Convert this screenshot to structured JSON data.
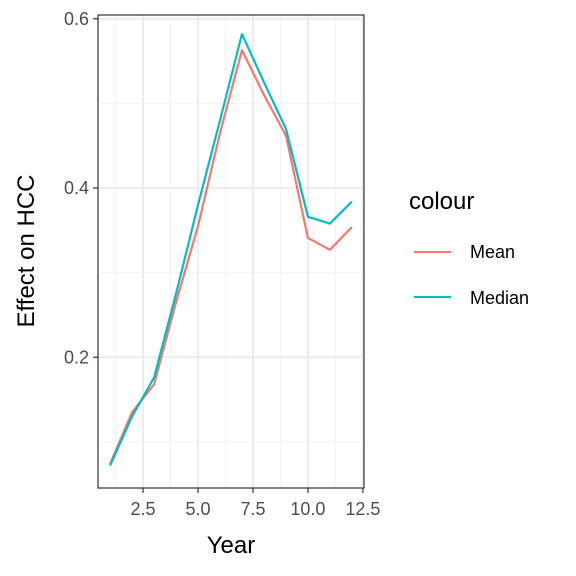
{
  "chart_data": {
    "type": "line",
    "title": "",
    "xlabel": "Year",
    "ylabel": "Effect on HCC",
    "xlim": [
      0.45,
      12.55
    ],
    "ylim": [
      0.0455,
      0.6045
    ],
    "x_major_ticks": [
      2.5,
      5.0,
      7.5,
      10.0,
      12.5
    ],
    "x_tick_labels": [
      "2.5",
      "5.0",
      "7.5",
      "10.0",
      "12.5"
    ],
    "x_minor_ticks": [
      1.25,
      3.75,
      6.25,
      8.75,
      11.25
    ],
    "y_major_ticks": [
      0.2,
      0.4,
      0.6
    ],
    "y_tick_labels": [
      "0.2",
      "0.4",
      "0.6"
    ],
    "y_minor_ticks": [
      0.1,
      0.3,
      0.5
    ],
    "grid": true,
    "legend": {
      "title": "colour",
      "position": "right"
    },
    "x": [
      1,
      2,
      3,
      4,
      5,
      6,
      7,
      8,
      9,
      10,
      11,
      12
    ],
    "series": [
      {
        "name": "Mean",
        "color": "#F8766D",
        "values": [
          0.074,
          0.135,
          0.168,
          0.265,
          0.355,
          0.465,
          0.563,
          0.51,
          0.462,
          0.341,
          0.327,
          0.354
        ]
      },
      {
        "name": "Median",
        "color": "#00BFC4",
        "values": [
          0.072,
          0.13,
          0.176,
          0.275,
          0.38,
          0.48,
          0.582,
          0.525,
          0.47,
          0.366,
          0.358,
          0.384
        ]
      }
    ]
  }
}
